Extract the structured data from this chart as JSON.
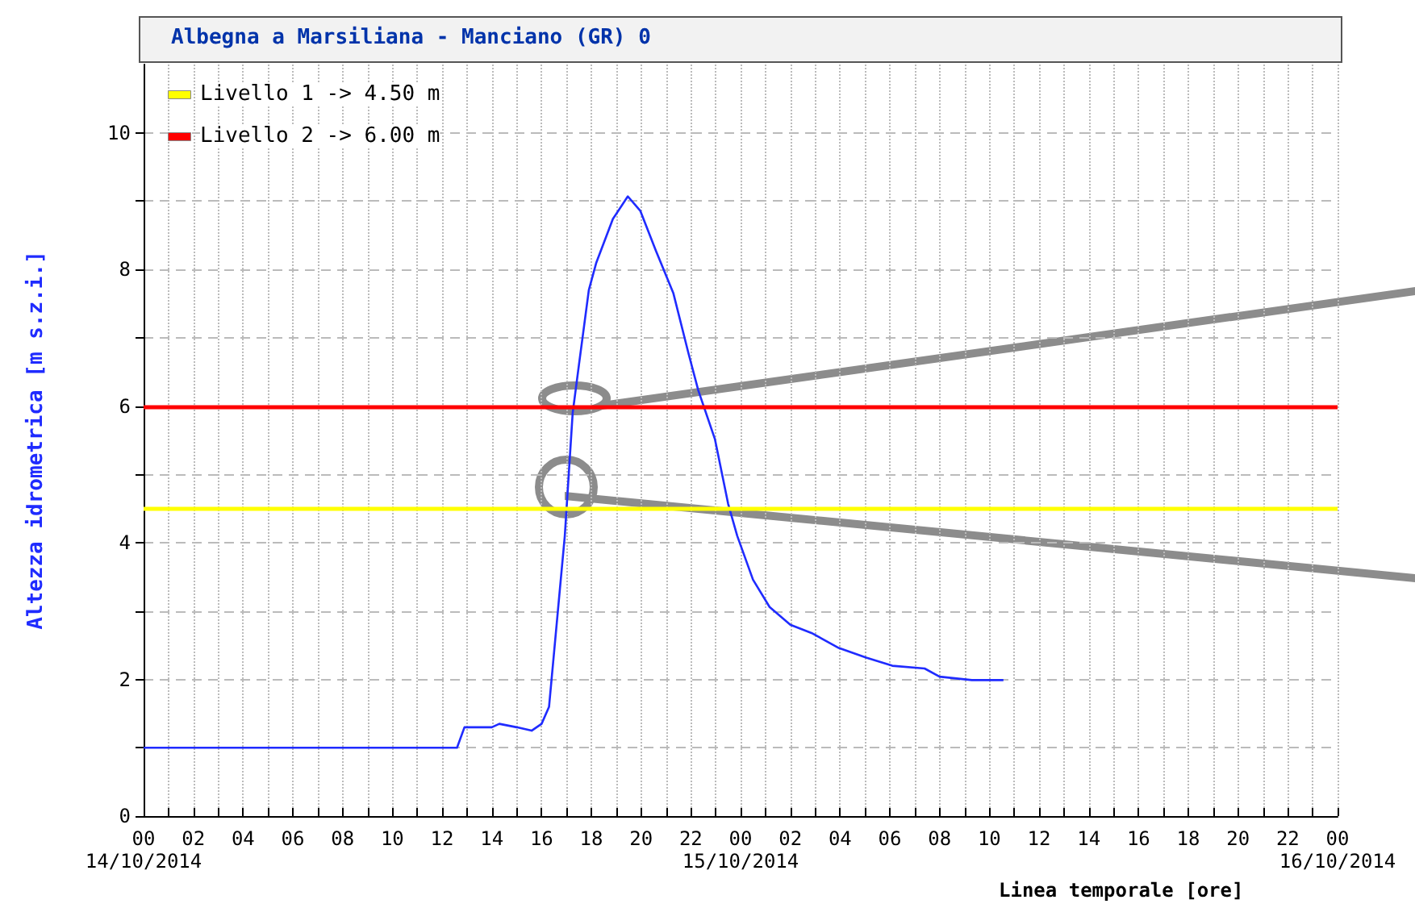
{
  "chart_data": {
    "type": "line",
    "title": "Albegna a Marsiliana - Manciano (GR) 0",
    "xlabel": "Linea temporale [ore]",
    "ylabel": "Altezza idrometrica [m s.z.i.]",
    "series": [
      {
        "color": "#1f2bff",
        "x": [
          "2014-10-14T00:00",
          "2014-10-14T12:36",
          "2014-10-14T12:54",
          "2014-10-14T14:00",
          "2014-10-14T14:18",
          "2014-10-14T15:00",
          "2014-10-14T15:36",
          "2014-10-14T16:00",
          "2014-10-14T16:18",
          "2014-10-14T16:56",
          "2014-10-14T17:15",
          "2014-10-14T17:30",
          "2014-10-14T17:54",
          "2014-10-14T18:12",
          "2014-10-14T18:52",
          "2014-10-14T19:28",
          "2014-10-14T19:58",
          "2014-10-14T20:36",
          "2014-10-14T21:18",
          "2014-10-14T21:54",
          "2014-10-14T22:18",
          "2014-10-14T22:58",
          "2014-10-14T23:30",
          "2014-10-14T23:52",
          "2014-10-15T00:30",
          "2014-10-15T01:10",
          "2014-10-15T02:00",
          "2014-10-15T02:51",
          "2014-10-15T03:57",
          "2014-10-15T05:03",
          "2014-10-15T06:06",
          "2014-10-15T07:24",
          "2014-10-15T08:00",
          "2014-10-15T09:18",
          "2014-10-15T10:34"
        ],
        "values": [
          1,
          1,
          1.3,
          1.3,
          1.35,
          1.3,
          1.25,
          1.35,
          1.6,
          4.1,
          5.9,
          6.6,
          7.7,
          8.1,
          8.74,
          9.07,
          8.86,
          8.27,
          7.65,
          6.78,
          6.23,
          5.52,
          4.57,
          4.1,
          3.46,
          3.06,
          2.8,
          2.68,
          2.46,
          2.32,
          2.2,
          2.16,
          2.04,
          1.99,
          1.99
        ]
      }
    ],
    "xlim": [
      "2014-10-14T00:00",
      "2014-10-16T00:00"
    ],
    "annotations": [
      "14/10/2014",
      "15/10/2014",
      "16/10/2014"
    ],
    "legend": "top left",
    "xticks": [
      {
        "value": "2014-10-14T00:00",
        "label": "00"
      },
      {
        "value": "2014-10-14T01:00",
        "label": null
      },
      {
        "value": "2014-10-14T02:00",
        "label": "02"
      },
      {
        "value": "2014-10-14T03:00",
        "label": null
      },
      {
        "value": "2014-10-14T04:00",
        "label": "04"
      },
      {
        "value": "2014-10-14T05:00",
        "label": null
      },
      {
        "value": "2014-10-14T06:00",
        "label": "06"
      },
      {
        "value": "2014-10-14T07:00",
        "label": null
      },
      {
        "value": "2014-10-14T08:00",
        "label": "08"
      },
      {
        "value": "2014-10-14T09:00",
        "label": null
      },
      {
        "value": "2014-10-14T10:00",
        "label": "10"
      },
      {
        "value": "2014-10-14T11:00",
        "label": null
      },
      {
        "value": "2014-10-14T12:00",
        "label": "12"
      },
      {
        "value": "2014-10-14T13:00",
        "label": null
      },
      {
        "value": "2014-10-14T14:00",
        "label": "14"
      },
      {
        "value": "2014-10-14T15:00",
        "label": null
      },
      {
        "value": "2014-10-14T16:00",
        "label": "16"
      },
      {
        "value": "2014-10-14T17:00",
        "label": null
      },
      {
        "value": "2014-10-14T18:00",
        "label": "18"
      },
      {
        "value": "2014-10-14T19:00",
        "label": null
      },
      {
        "value": "2014-10-14T20:00",
        "label": "20"
      },
      {
        "value": "2014-10-14T21:00",
        "label": null
      },
      {
        "value": "2014-10-14T22:00",
        "label": "22"
      },
      {
        "value": "2014-10-14T23:00",
        "label": null
      },
      {
        "value": "2014-10-15T00:00",
        "label": "00"
      },
      {
        "value": "2014-10-15T01:00",
        "label": null
      },
      {
        "value": "2014-10-15T02:00",
        "label": "02"
      },
      {
        "value": "2014-10-15T03:00",
        "label": null
      },
      {
        "value": "2014-10-15T04:00",
        "label": "04"
      },
      {
        "value": "2014-10-15T05:00",
        "label": null
      },
      {
        "value": "2014-10-15T06:00",
        "label": "06"
      },
      {
        "value": "2014-10-15T07:00",
        "label": null
      },
      {
        "value": "2014-10-15T08:00",
        "label": "08"
      },
      {
        "value": "2014-10-15T09:00",
        "label": null
      },
      {
        "value": "2014-10-15T10:00",
        "label": "10"
      },
      {
        "value": "2014-10-15T11:00",
        "label": null
      },
      {
        "value": "2014-10-15T12:00",
        "label": "12"
      },
      {
        "value": "2014-10-15T13:00",
        "label": null
      },
      {
        "value": "2014-10-15T14:00",
        "label": "14"
      },
      {
        "value": "2014-10-15T15:00",
        "label": null
      },
      {
        "value": "2014-10-15T16:00",
        "label": "16"
      },
      {
        "value": "2014-10-15T17:00",
        "label": null
      },
      {
        "value": "2014-10-15T18:00",
        "label": "18"
      },
      {
        "value": "2014-10-15T19:00",
        "label": null
      },
      {
        "value": "2014-10-15T20:00",
        "label": "20"
      },
      {
        "value": "2014-10-15T21:00",
        "label": null
      },
      {
        "value": "2014-10-15T22:00",
        "label": "22"
      },
      {
        "value": "2014-10-15T23:00",
        "label": null
      },
      {
        "value": "2014-10-16T00:00",
        "label": "00"
      }
    ],
    "ylim": [
      0,
      11
    ],
    "yticks": [
      0,
      {
        "value": 1,
        "label": null
      },
      2,
      {
        "value": 3,
        "label": null
      },
      4,
      {
        "value": 5,
        "label": null
      },
      6,
      {
        "value": 7,
        "label": null
      },
      8,
      {
        "value": 9,
        "label": null
      },
      10
    ],
    "ref_lines": [
      {
        "axis": "y",
        "value": 4.5,
        "label": "Livello 1 -> 4.50 m",
        "color": "#ffff00"
      },
      {
        "axis": "y",
        "value": 6,
        "label": "Livello 2 -> 6.00 m",
        "color": "#ff0000"
      }
    ],
    "grid": true,
    "marker": "none",
    "line_style": "solid"
  }
}
